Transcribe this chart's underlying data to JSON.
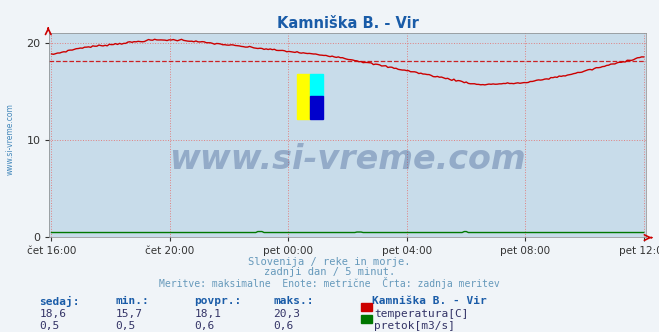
{
  "title": "Kamniška B. - Vir",
  "title_color": "#1a5ca8",
  "fig_bg_color": "#f0f4f8",
  "plot_bg_color": "#c8dcea",
  "grid_color": "#e08080",
  "grid_linestyle": ":",
  "x_labels": [
    "čet 16:00",
    "čet 20:00",
    "pet 00:00",
    "pet 04:00",
    "pet 08:00",
    "pet 12:00"
  ],
  "ylim": [
    0,
    21
  ],
  "y_ticks": [
    0,
    10,
    20
  ],
  "temp_color": "#cc0000",
  "flow_color": "#007700",
  "avg_line_color": "#cc0000",
  "avg_value": 18.1,
  "watermark": "www.si-vreme.com",
  "watermark_color": "#1a3a7a",
  "left_label": "www.si-vreme.com",
  "left_label_color": "#4488bb",
  "subtitle1": "Slovenija / reke in morje.",
  "subtitle2": "zadnji dan / 5 minut.",
  "subtitle3": "Meritve: maksimalne  Enote: metrične  Črta: zadnja meritev",
  "text_color": "#6699bb",
  "legend_title": "Kamniška B. - Vir",
  "legend_title_color": "#1a5ca8",
  "legend_items": [
    "temperatura[C]",
    "pretok[m3/s]"
  ],
  "legend_colors": [
    "#cc0000",
    "#007700"
  ],
  "table_headers": [
    "sedaj:",
    "min.:",
    "povpr.:",
    "maks.:"
  ],
  "table_header_color": "#1a5ca8",
  "table_row1": [
    "18,6",
    "15,7",
    "18,1",
    "20,3"
  ],
  "table_row2": [
    "0,5",
    "0,5",
    "0,6",
    "0,6"
  ],
  "table_data_color": "#333366",
  "arrow_color": "#cc0000",
  "spine_color": "#888888"
}
